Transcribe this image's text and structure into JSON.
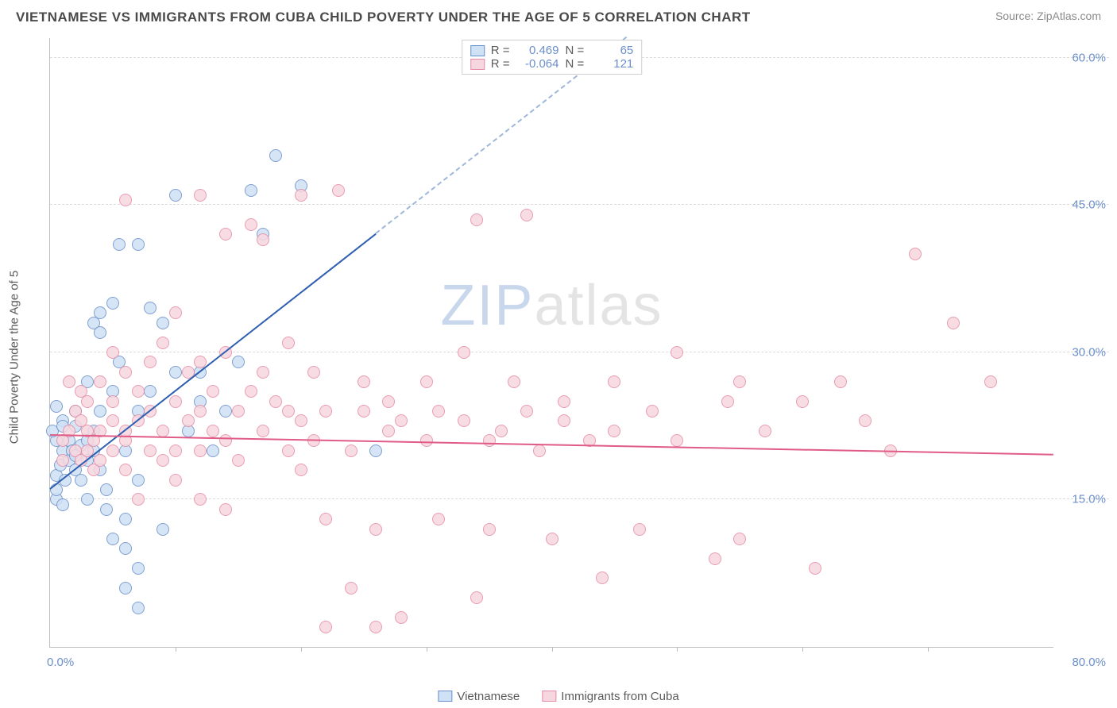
{
  "header": {
    "title": "VIETNAMESE VS IMMIGRANTS FROM CUBA CHILD POVERTY UNDER THE AGE OF 5 CORRELATION CHART",
    "source_prefix": "Source: ",
    "source_link": "ZipAtlas.com"
  },
  "chart": {
    "type": "scatter",
    "ylabel": "Child Poverty Under the Age of 5",
    "xlim": [
      0,
      80
    ],
    "ylim": [
      0,
      62
    ],
    "yticks": [
      15,
      30,
      45,
      60
    ],
    "ytick_labels": [
      "15.0%",
      "30.0%",
      "45.0%",
      "60.0%"
    ],
    "xticks": [
      10,
      20,
      30,
      40,
      50,
      60,
      70
    ],
    "x_min_label": "0.0%",
    "x_max_label": "80.0%",
    "grid_color": "#dcdcdc",
    "axis_color": "#bdbdbd",
    "tick_label_color": "#6b8fc9",
    "background_color": "#ffffff",
    "watermark": {
      "zip": "ZIP",
      "atlas": "atlas"
    },
    "series": [
      {
        "name": "Vietnamese",
        "fill": "#cfe1f5",
        "stroke": "#6b8fc9",
        "trend_color": "#2e5fb0",
        "trend_dash_color": "#9fb7d8",
        "r_label": "R =",
        "r_value": "0.469",
        "n_label": "N =",
        "n_value": "65",
        "trend": {
          "x1": 0,
          "y1": 16,
          "x2": 26,
          "y2": 42,
          "dash_x2": 46,
          "dash_y2": 62
        },
        "points": [
          [
            0.5,
            15
          ],
          [
            0.5,
            16
          ],
          [
            1,
            14.5
          ],
          [
            0.5,
            17.5
          ],
          [
            0.8,
            18.5
          ],
          [
            1,
            20
          ],
          [
            0.5,
            21
          ],
          [
            0.2,
            22
          ],
          [
            1,
            23
          ],
          [
            0.5,
            24.5
          ],
          [
            1.2,
            17
          ],
          [
            1.5,
            19
          ],
          [
            1.5,
            21
          ],
          [
            1,
            22.5
          ],
          [
            1.8,
            20
          ],
          [
            2,
            18
          ],
          [
            2,
            19.5
          ],
          [
            2,
            22.5
          ],
          [
            2,
            24
          ],
          [
            2.5,
            17
          ],
          [
            2.5,
            20.5
          ],
          [
            3,
            15
          ],
          [
            3,
            19
          ],
          [
            3,
            21
          ],
          [
            3,
            27
          ],
          [
            3.5,
            20
          ],
          [
            3.5,
            22
          ],
          [
            3.5,
            33
          ],
          [
            4,
            18
          ],
          [
            4,
            24
          ],
          [
            4,
            32
          ],
          [
            4,
            34
          ],
          [
            4.5,
            14
          ],
          [
            4.5,
            16
          ],
          [
            5,
            11
          ],
          [
            5,
            26
          ],
          [
            5,
            35
          ],
          [
            5.5,
            29
          ],
          [
            5.5,
            41
          ],
          [
            6,
            6
          ],
          [
            6,
            10
          ],
          [
            6,
            13
          ],
          [
            6,
            20
          ],
          [
            7,
            4
          ],
          [
            7,
            8
          ],
          [
            7,
            17
          ],
          [
            7,
            24
          ],
          [
            7,
            41
          ],
          [
            8,
            26
          ],
          [
            8,
            34.5
          ],
          [
            9,
            12
          ],
          [
            9,
            33
          ],
          [
            10,
            28
          ],
          [
            10,
            46
          ],
          [
            11,
            22
          ],
          [
            12,
            25
          ],
          [
            12,
            28
          ],
          [
            13,
            20
          ],
          [
            14,
            24
          ],
          [
            15,
            29
          ],
          [
            16,
            46.5
          ],
          [
            17,
            42
          ],
          [
            18,
            50
          ],
          [
            20,
            47
          ],
          [
            26,
            20
          ]
        ]
      },
      {
        "name": "Immigrants from Cuba",
        "fill": "#f7d7df",
        "stroke": "#e48ca5",
        "trend_color": "#e05b87",
        "r_label": "R =",
        "r_value": "-0.064",
        "n_label": "N =",
        "n_value": "121",
        "trend": {
          "x1": 0,
          "y1": 21.5,
          "x2": 80,
          "y2": 19.5
        },
        "points": [
          [
            1,
            19
          ],
          [
            1,
            21
          ],
          [
            1.5,
            22
          ],
          [
            1.5,
            27
          ],
          [
            2,
            20
          ],
          [
            2,
            24
          ],
          [
            2.5,
            19
          ],
          [
            2.5,
            23
          ],
          [
            2.5,
            26
          ],
          [
            3,
            20
          ],
          [
            3,
            22
          ],
          [
            3,
            25
          ],
          [
            3.5,
            18
          ],
          [
            3.5,
            21
          ],
          [
            4,
            19
          ],
          [
            4,
            22
          ],
          [
            4,
            27
          ],
          [
            5,
            20
          ],
          [
            5,
            23
          ],
          [
            5,
            25
          ],
          [
            5,
            30
          ],
          [
            6,
            18
          ],
          [
            6,
            21
          ],
          [
            6,
            22
          ],
          [
            6,
            28
          ],
          [
            6,
            45.5
          ],
          [
            7,
            15
          ],
          [
            7,
            23
          ],
          [
            7,
            26
          ],
          [
            8,
            20
          ],
          [
            8,
            24
          ],
          [
            8,
            29
          ],
          [
            9,
            19
          ],
          [
            9,
            22
          ],
          [
            9,
            31
          ],
          [
            10,
            17
          ],
          [
            10,
            20
          ],
          [
            10,
            25
          ],
          [
            10,
            34
          ],
          [
            11,
            23
          ],
          [
            11,
            28
          ],
          [
            12,
            15
          ],
          [
            12,
            20
          ],
          [
            12,
            24
          ],
          [
            12,
            29
          ],
          [
            12,
            46
          ],
          [
            13,
            22
          ],
          [
            13,
            26
          ],
          [
            14,
            14
          ],
          [
            14,
            21
          ],
          [
            14,
            30
          ],
          [
            14,
            42
          ],
          [
            15,
            19
          ],
          [
            15,
            24
          ],
          [
            16,
            26
          ],
          [
            16,
            43
          ],
          [
            17,
            22
          ],
          [
            17,
            28
          ],
          [
            17,
            41.5
          ],
          [
            18,
            25
          ],
          [
            19,
            20
          ],
          [
            19,
            24
          ],
          [
            19,
            31
          ],
          [
            20,
            18
          ],
          [
            20,
            23
          ],
          [
            20,
            46
          ],
          [
            21,
            21
          ],
          [
            21,
            28
          ],
          [
            22,
            2
          ],
          [
            22,
            13
          ],
          [
            22,
            24
          ],
          [
            23,
            46.5
          ],
          [
            24,
            6
          ],
          [
            24,
            20
          ],
          [
            25,
            24
          ],
          [
            25,
            27
          ],
          [
            26,
            2
          ],
          [
            26,
            12
          ],
          [
            27,
            22
          ],
          [
            27,
            25
          ],
          [
            28,
            3
          ],
          [
            28,
            23
          ],
          [
            30,
            21
          ],
          [
            30,
            27
          ],
          [
            31,
            13
          ],
          [
            31,
            24
          ],
          [
            33,
            23
          ],
          [
            33,
            30
          ],
          [
            34,
            5
          ],
          [
            34,
            43.5
          ],
          [
            35,
            12
          ],
          [
            35,
            21
          ],
          [
            36,
            22
          ],
          [
            37,
            27
          ],
          [
            38,
            24
          ],
          [
            38,
            44
          ],
          [
            39,
            20
          ],
          [
            40,
            11
          ],
          [
            41,
            23
          ],
          [
            41,
            25
          ],
          [
            43,
            21
          ],
          [
            44,
            7
          ],
          [
            45,
            22
          ],
          [
            45,
            27
          ],
          [
            47,
            12
          ],
          [
            48,
            24
          ],
          [
            50,
            21
          ],
          [
            50,
            30
          ],
          [
            53,
            9
          ],
          [
            54,
            25
          ],
          [
            55,
            11
          ],
          [
            55,
            27
          ],
          [
            57,
            22
          ],
          [
            60,
            25
          ],
          [
            61,
            8
          ],
          [
            63,
            27
          ],
          [
            65,
            23
          ],
          [
            67,
            20
          ],
          [
            69,
            40
          ],
          [
            72,
            33
          ],
          [
            75,
            27
          ]
        ]
      }
    ]
  },
  "legend_bottom": {
    "items": [
      "Vietnamese",
      "Immigrants from Cuba"
    ]
  }
}
